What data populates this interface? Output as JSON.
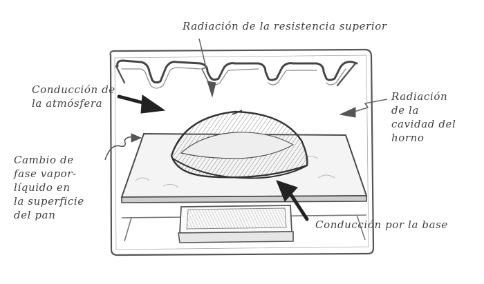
{
  "diagram": {
    "labels": {
      "top_radiation": [
        "Radiación de la resistencia superior"
      ],
      "atmosphere_conduction": [
        "Conducción de",
        "la atmósfera"
      ],
      "cavity_radiation": [
        "Radiación",
        "de la",
        "cavidad del",
        "horno"
      ],
      "phase_change": [
        "Cambio de",
        "fase vapor-",
        "líquido en",
        "la superficie",
        "del pan"
      ],
      "base_conduction": [
        "Conducción por la base"
      ]
    },
    "colors": {
      "pencil": "#3f3f3f",
      "light_pencil": "#7a7a7a",
      "shading": "#9a9a9a",
      "paper": "#ffffff"
    }
  }
}
